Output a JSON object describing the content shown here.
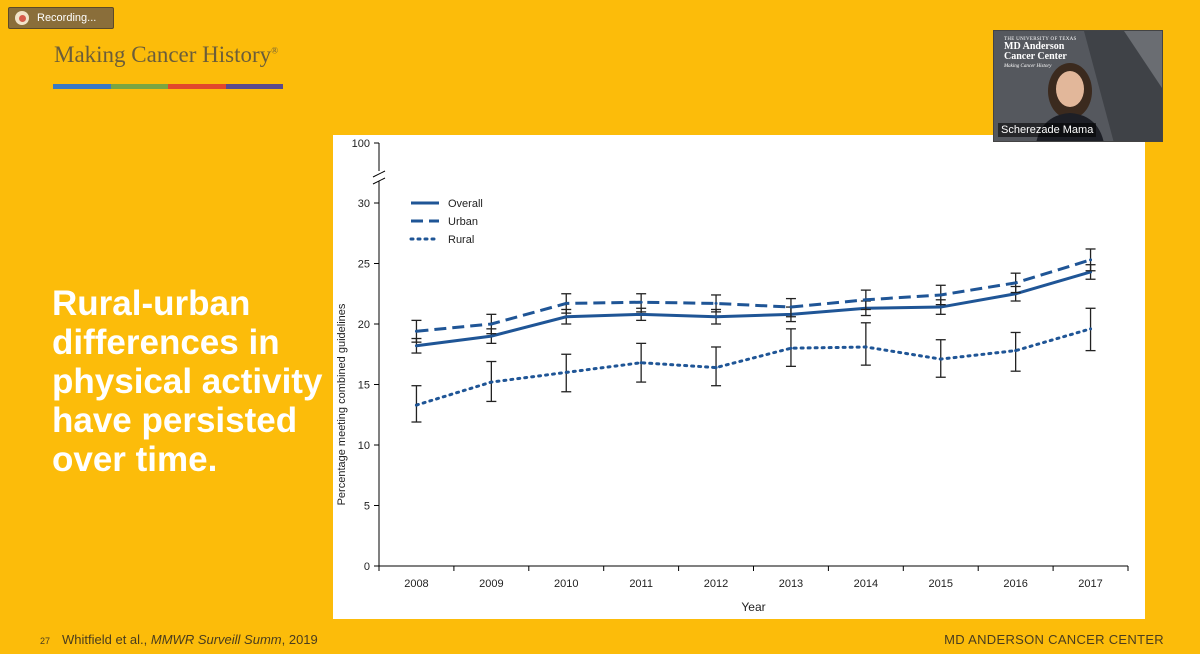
{
  "recording": {
    "label": "Recording..."
  },
  "brand": {
    "name": "Making Cancer History",
    "mark": "®",
    "bar_colors": [
      "#3a79c3",
      "#7aa542",
      "#e2472c",
      "#5b4a8c"
    ]
  },
  "slide": {
    "headline": "Rural-urban differences in physical activity have persisted over time.",
    "page_number": "27"
  },
  "citation": {
    "author": "Whitfield et al., ",
    "journal": "MMWR Surveill Summ",
    "year": ", 2019"
  },
  "footer": {
    "org": "MD ANDERSON CANCER CENTER"
  },
  "video": {
    "participant_name": "Scherezade Mama",
    "logo_line1": "THE UNIVERSITY OF TEXAS",
    "logo_line2": "MD Anderson",
    "logo_line3": "Cancer Center",
    "logo_line4": "Making Cancer History"
  },
  "colors": {
    "background": "#fcbc0a",
    "series": "#1f5596"
  },
  "chart_data": {
    "type": "line",
    "xlabel": "Year",
    "ylabel": "Percentage meeting combined guidelines",
    "x": [
      2008,
      2009,
      2010,
      2011,
      2012,
      2013,
      2014,
      2015,
      2016,
      2017
    ],
    "yticks": [
      0,
      5,
      10,
      15,
      20,
      25,
      30,
      100
    ],
    "ylim": [
      0,
      100
    ],
    "axis_break": [
      30,
      100
    ],
    "legend_position": "top-left",
    "series": [
      {
        "name": "Overall",
        "style": "solid",
        "values": [
          18.2,
          19.0,
          20.6,
          20.8,
          20.6,
          20.8,
          21.3,
          21.4,
          22.5,
          24.3
        ],
        "error_low": [
          17.6,
          18.4,
          20.0,
          20.3,
          20.0,
          20.2,
          20.7,
          20.8,
          21.9,
          23.7
        ],
        "error_high": [
          18.8,
          19.6,
          21.2,
          21.3,
          21.2,
          21.4,
          21.9,
          22.0,
          23.1,
          24.9
        ]
      },
      {
        "name": "Urban",
        "style": "dashed",
        "values": [
          19.4,
          20.0,
          21.7,
          21.8,
          21.7,
          21.4,
          22.0,
          22.4,
          23.4,
          25.3
        ],
        "error_low": [
          18.5,
          19.2,
          20.9,
          21.0,
          21.0,
          20.6,
          21.2,
          21.6,
          22.6,
          24.4
        ],
        "error_high": [
          20.3,
          20.8,
          22.5,
          22.5,
          22.4,
          22.1,
          22.8,
          23.2,
          24.2,
          26.2
        ]
      },
      {
        "name": "Rural",
        "style": "dotted",
        "values": [
          13.3,
          15.2,
          16.0,
          16.8,
          16.4,
          18.0,
          18.1,
          17.1,
          17.8,
          19.6
        ],
        "error_low": [
          11.9,
          13.6,
          14.4,
          15.2,
          14.9,
          16.5,
          16.6,
          15.6,
          16.1,
          17.8
        ],
        "error_high": [
          14.9,
          16.9,
          17.5,
          18.4,
          18.1,
          19.6,
          20.1,
          18.7,
          19.3,
          21.3
        ]
      }
    ]
  }
}
